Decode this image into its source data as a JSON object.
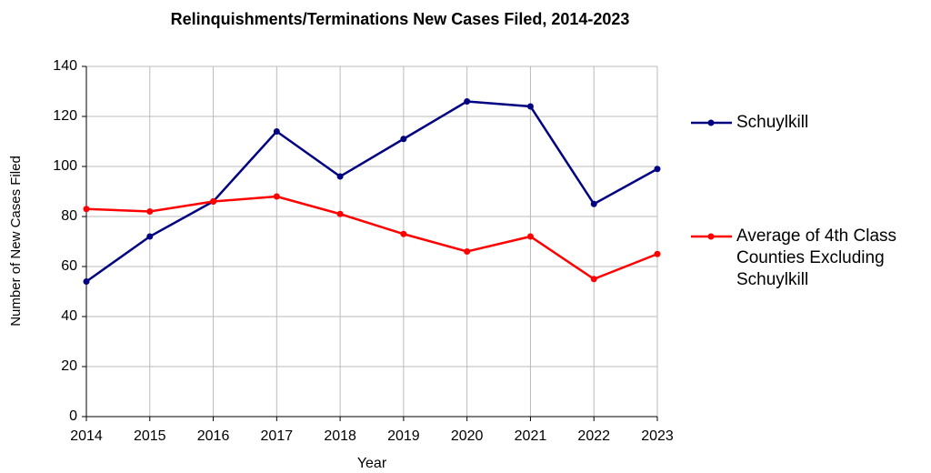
{
  "chart_data": {
    "type": "line",
    "title": "Relinquishments/Terminations New Cases Filed, 2014-2023",
    "x_label": "Year",
    "y_label": "Number of New Cases Filed",
    "x": [
      2014,
      2015,
      2016,
      2017,
      2018,
      2019,
      2020,
      2021,
      2022,
      2023
    ],
    "series": [
      {
        "name": "Schuylkill",
        "color": "#000080",
        "values": [
          54,
          72,
          86,
          114,
          96,
          111,
          126,
          124,
          85,
          99
        ]
      },
      {
        "name": "Average of 4th Class Counties Excluding Schuylkill",
        "color": "#ff0000",
        "values": [
          83,
          82,
          86,
          88,
          81,
          73,
          66,
          72,
          55,
          65
        ]
      }
    ],
    "xlim": [
      2014,
      2023
    ],
    "xticks": [
      2014,
      2015,
      2016,
      2017,
      2018,
      2019,
      2020,
      2021,
      2022,
      2023
    ],
    "ylim": [
      0,
      140
    ],
    "yticks": [
      0,
      20,
      40,
      60,
      80,
      100,
      120,
      140
    ],
    "grid": true,
    "legend": "right"
  }
}
